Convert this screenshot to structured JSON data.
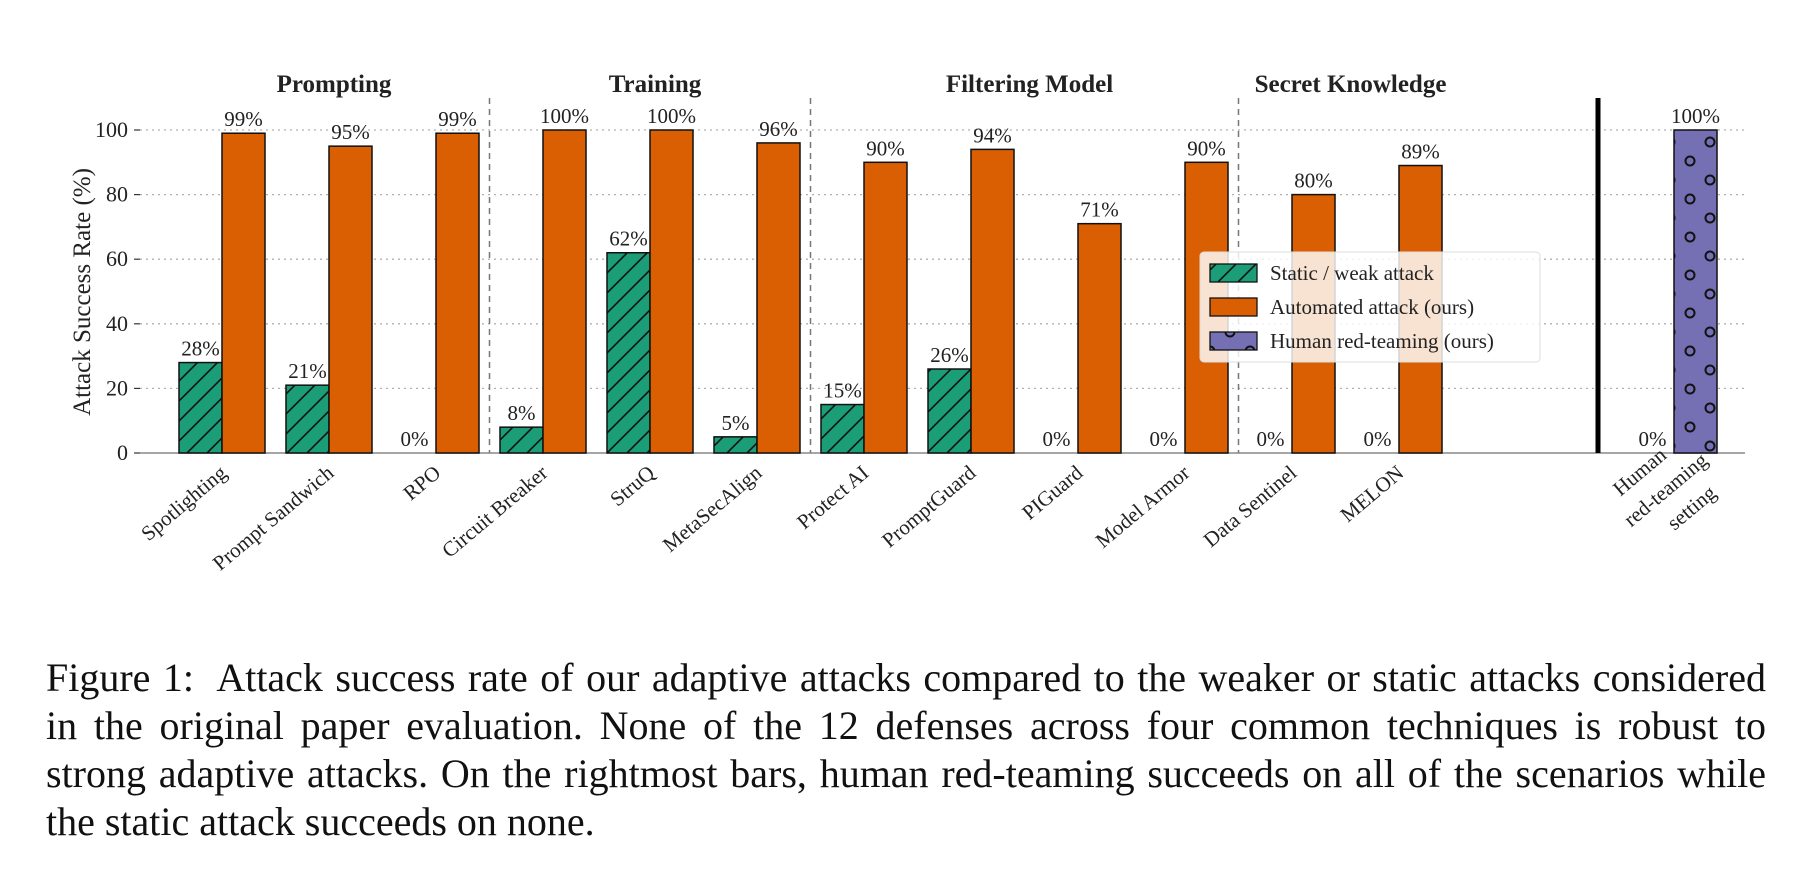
{
  "chart_data": {
    "type": "bar",
    "ylabel": "Attack Success Rate (%)",
    "ylim": [
      0,
      105
    ],
    "yticks": [
      0,
      20,
      40,
      60,
      80,
      100
    ],
    "groups": [
      {
        "title": "Prompting",
        "categories": [
          "Spotlighting",
          "Prompt Sandwich",
          "RPO"
        ]
      },
      {
        "title": "Training",
        "categories": [
          "Circuit Breaker",
          "StruQ",
          "MetaSecAlign"
        ]
      },
      {
        "title": "Filtering Model",
        "categories": [
          "Protect AI",
          "PromptGuard",
          "PIGuard",
          "Model Armor"
        ]
      },
      {
        "title": "Secret Knowledge",
        "categories": [
          "Data Sentinel",
          "MELON"
        ]
      }
    ],
    "categories": [
      "Spotlighting",
      "Prompt Sandwich",
      "RPO",
      "Circuit Breaker",
      "StruQ",
      "MetaSecAlign",
      "Protect AI",
      "PromptGuard",
      "PIGuard",
      "Model Armor",
      "Data Sentinel",
      "MELON"
    ],
    "series": [
      {
        "name": "Static / weak attack",
        "color": "#1b9e77",
        "pattern": "hatch",
        "values": [
          28,
          21,
          0,
          8,
          62,
          5,
          15,
          26,
          0,
          0,
          0,
          0
        ]
      },
      {
        "name": "Automated attack (ours)",
        "color": "#d95f02",
        "pattern": "solid",
        "values": [
          99,
          95,
          99,
          100,
          100,
          96,
          90,
          94,
          71,
          90,
          80,
          89
        ]
      }
    ],
    "human": {
      "category_lines": [
        "Human",
        "red-teaming",
        "setting"
      ],
      "static_value": 0,
      "human_value": 100,
      "series_name": "Human red-teaming (ours)",
      "color": "#7570b3",
      "pattern": "circles"
    },
    "legend": {
      "position": "center-right",
      "entries": [
        "Static / weak attack",
        "Automated attack (ours)",
        "Human red-teaming (ours)"
      ]
    },
    "grid": "horizontal dotted",
    "value_suffix": "%"
  },
  "caption": {
    "label": "Figure 1:",
    "text": "Attack success rate of our adaptive attacks compared to the weaker or static attacks considered in the original paper evaluation. None of the 12 defenses across four common techniques is robust to strong adaptive attacks. On the rightmost bars, human red-teaming succeeds on all of the scenarios while the static attack succeeds on none."
  }
}
